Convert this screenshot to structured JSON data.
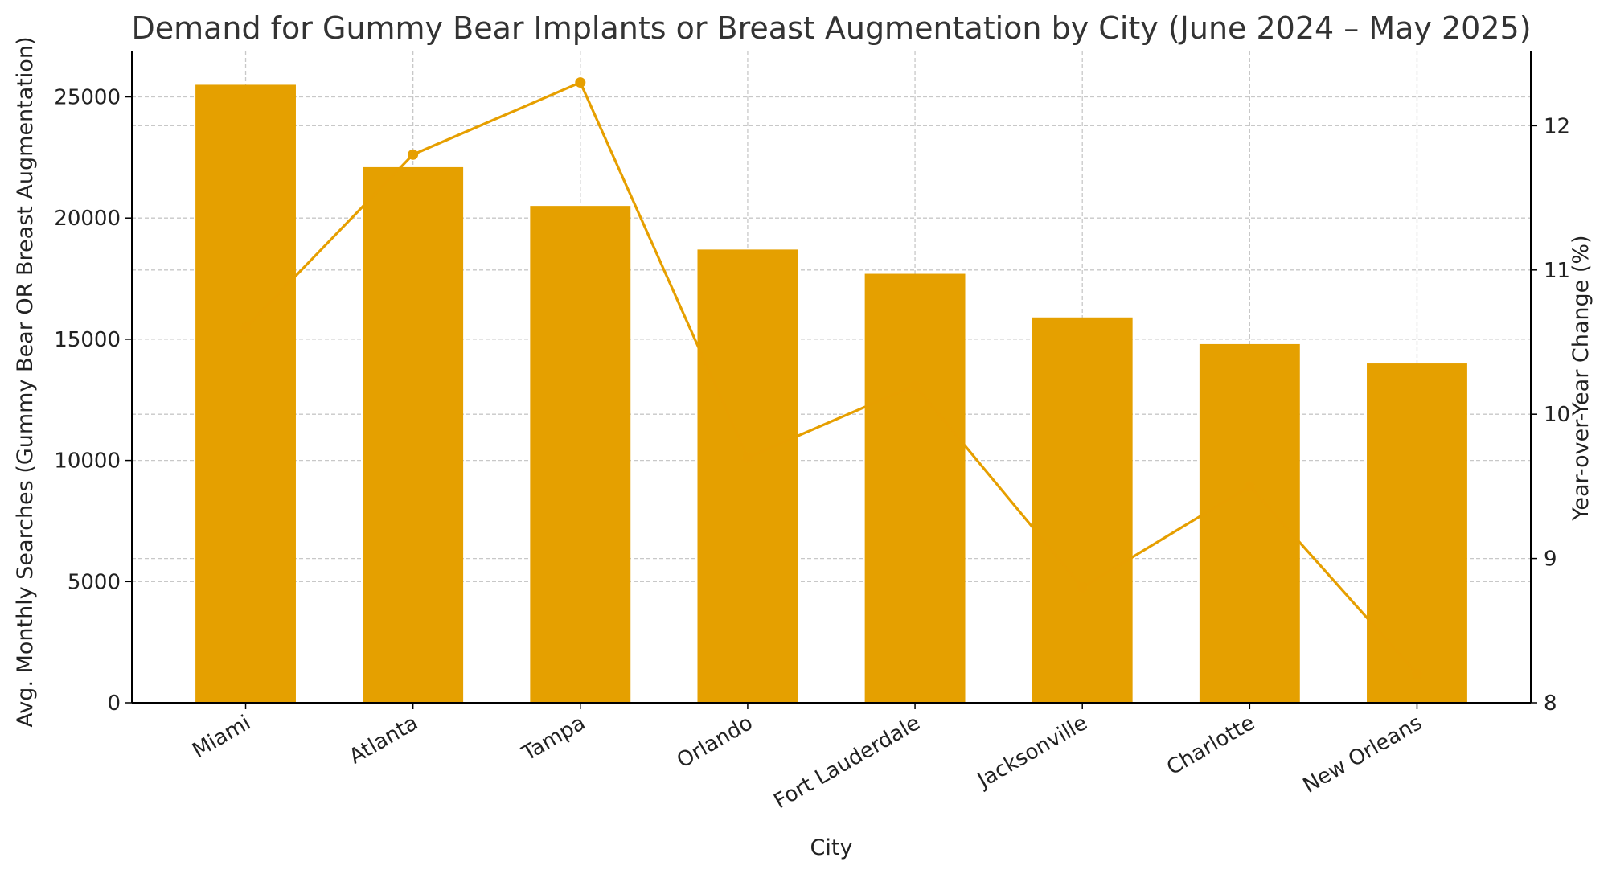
{
  "chart_data": {
    "type": "bar+line",
    "title": "Demand for Gummy Bear Implants or Breast Augmentation by City (June 2024 – May 2025)",
    "xlabel": "City",
    "ylabel": "Avg. Monthly Searches (Gummy Bear OR Breast Augmentation)",
    "y2label": "Year-over-Year Change (%)",
    "categories": [
      "Miami",
      "Atlanta",
      "Tampa",
      "Orlando",
      "Fort Lauderdale",
      "Jacksonville",
      "Charlotte",
      "New Orleans"
    ],
    "bar_values": [
      25500,
      22100,
      20500,
      18700,
      17700,
      15900,
      14800,
      14000
    ],
    "line_values": [
      10.6,
      11.8,
      12.3,
      9.7,
      10.2,
      8.8,
      9.5,
      8.2
    ],
    "ylim": [
      0,
      26875
    ],
    "y2lim": [
      8,
      12.515
    ],
    "yticks": [
      0,
      5000,
      10000,
      15000,
      20000,
      25000
    ],
    "y2ticks": [
      8,
      9,
      10,
      11,
      12
    ],
    "grid": true,
    "colors": {
      "bar": "#E5A000",
      "line": "#E69F00",
      "grid": "#c8c8c8"
    }
  }
}
